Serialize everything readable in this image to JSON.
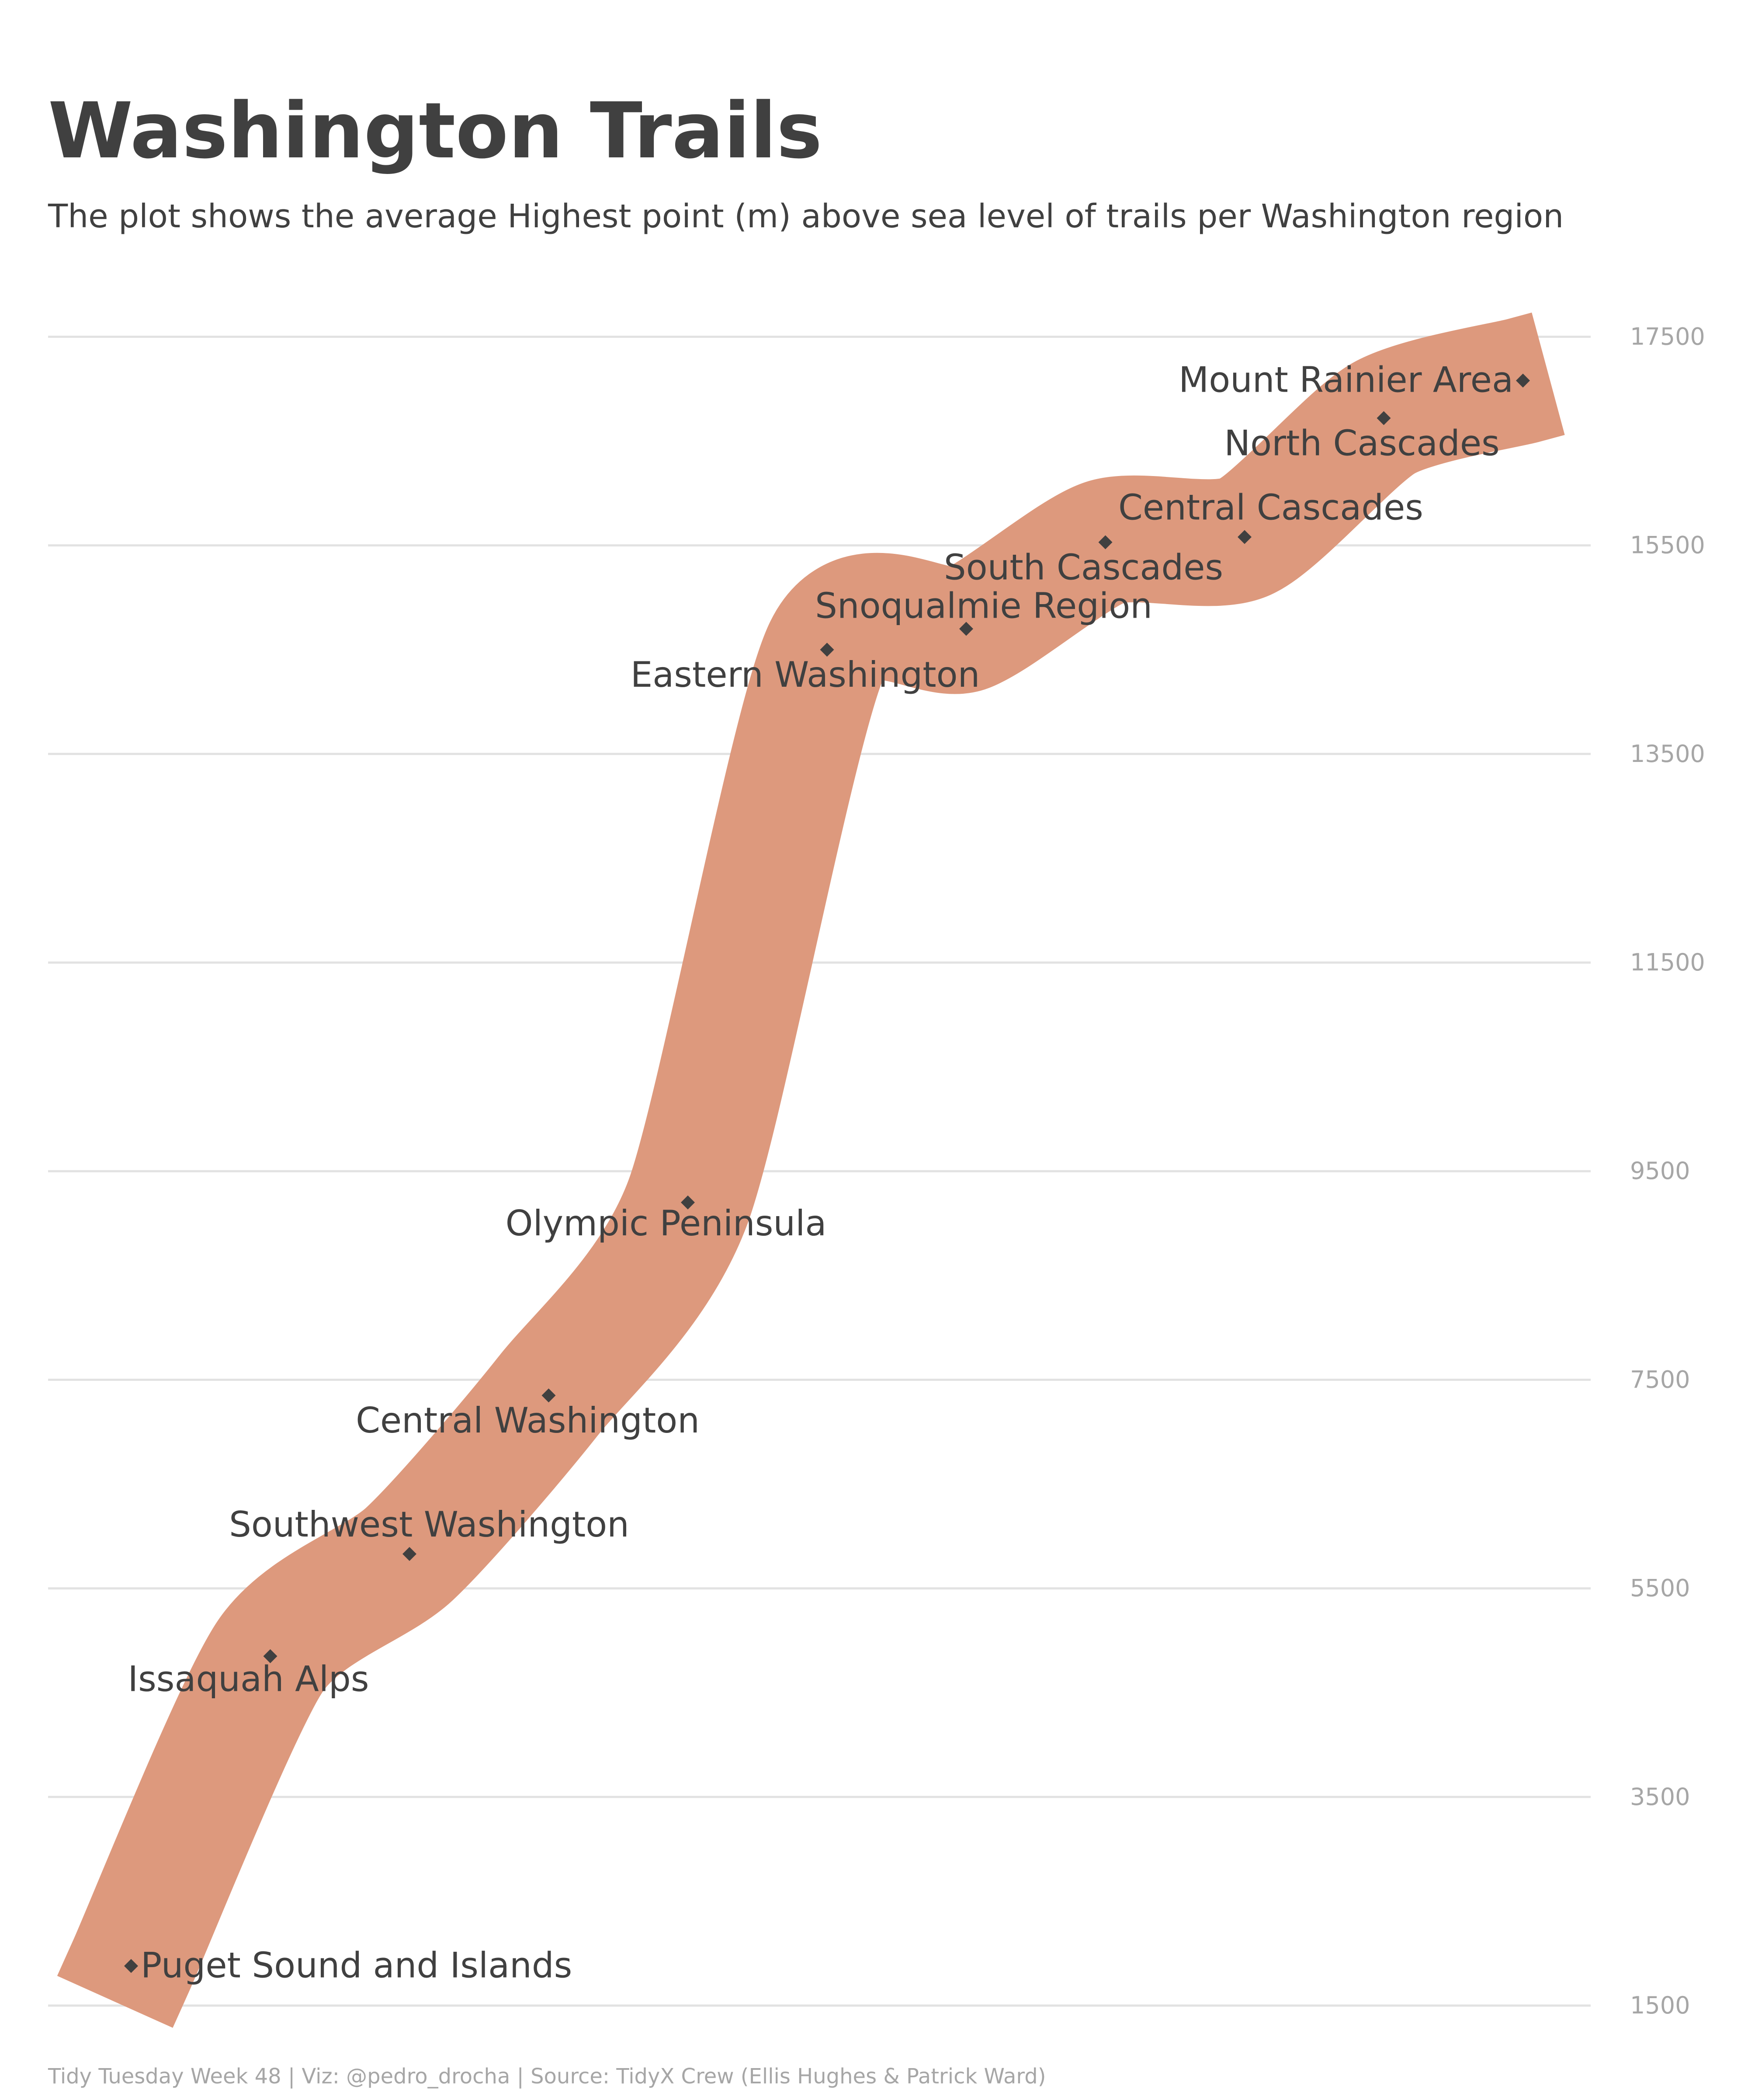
{
  "title": "Washington Trails",
  "subtitle": "The plot shows the average Highest point (m) above sea level of trails per Washington region",
  "caption": "Tidy Tuesday Week 48 | Viz: @pedro_drocha | Source: TidyX Crew (Ellis Hughes & Patrick Ward)",
  "colors": {
    "background": "#ffffff",
    "band": "#dd997d",
    "point": "#404040",
    "text": "#404040",
    "grid": "#e2e2e2",
    "tick": "#a6a6a6"
  },
  "chart_data": {
    "type": "line",
    "title": "Washington Trails",
    "subtitle": "The plot shows the average Highest point (m) above sea level of trails per Washington region",
    "xlabel": "",
    "ylabel": "",
    "ylim": [
      1500,
      18000
    ],
    "yticks": [
      1500,
      3500,
      5500,
      7500,
      9500,
      11500,
      13500,
      15500,
      17500
    ],
    "grid": true,
    "y_axis_position": "right",
    "categories": [
      "Puget Sound and Islands",
      "Issaquah Alps",
      "Southwest Washington",
      "Central Washington",
      "Olympic Peninsula",
      "Eastern Washington",
      "Snoqualmie Region",
      "South Cascades",
      "Central Cascades",
      "North Cascades",
      "Mount Rainier Area"
    ],
    "values": [
      1880,
      4850,
      5830,
      7350,
      9200,
      14500,
      14700,
      15530,
      15580,
      16720,
      17080
    ],
    "labels": [
      {
        "text": "Puget Sound and Islands",
        "position": "right"
      },
      {
        "text": "Issaquah Alps",
        "position": "below"
      },
      {
        "text": "Southwest Washington",
        "position": "above"
      },
      {
        "text": "Central Washington",
        "position": "below"
      },
      {
        "text": "Olympic Peninsula",
        "position": "below"
      },
      {
        "text": "Eastern Washington",
        "position": "below"
      },
      {
        "text": "Snoqualmie Region",
        "position": "above"
      },
      {
        "text": "South Cascades",
        "position": "below-left"
      },
      {
        "text": "Central Cascades",
        "position": "above"
      },
      {
        "text": "North Cascades",
        "position": "below"
      },
      {
        "text": "Mount Rainier Area",
        "position": "left"
      }
    ]
  }
}
